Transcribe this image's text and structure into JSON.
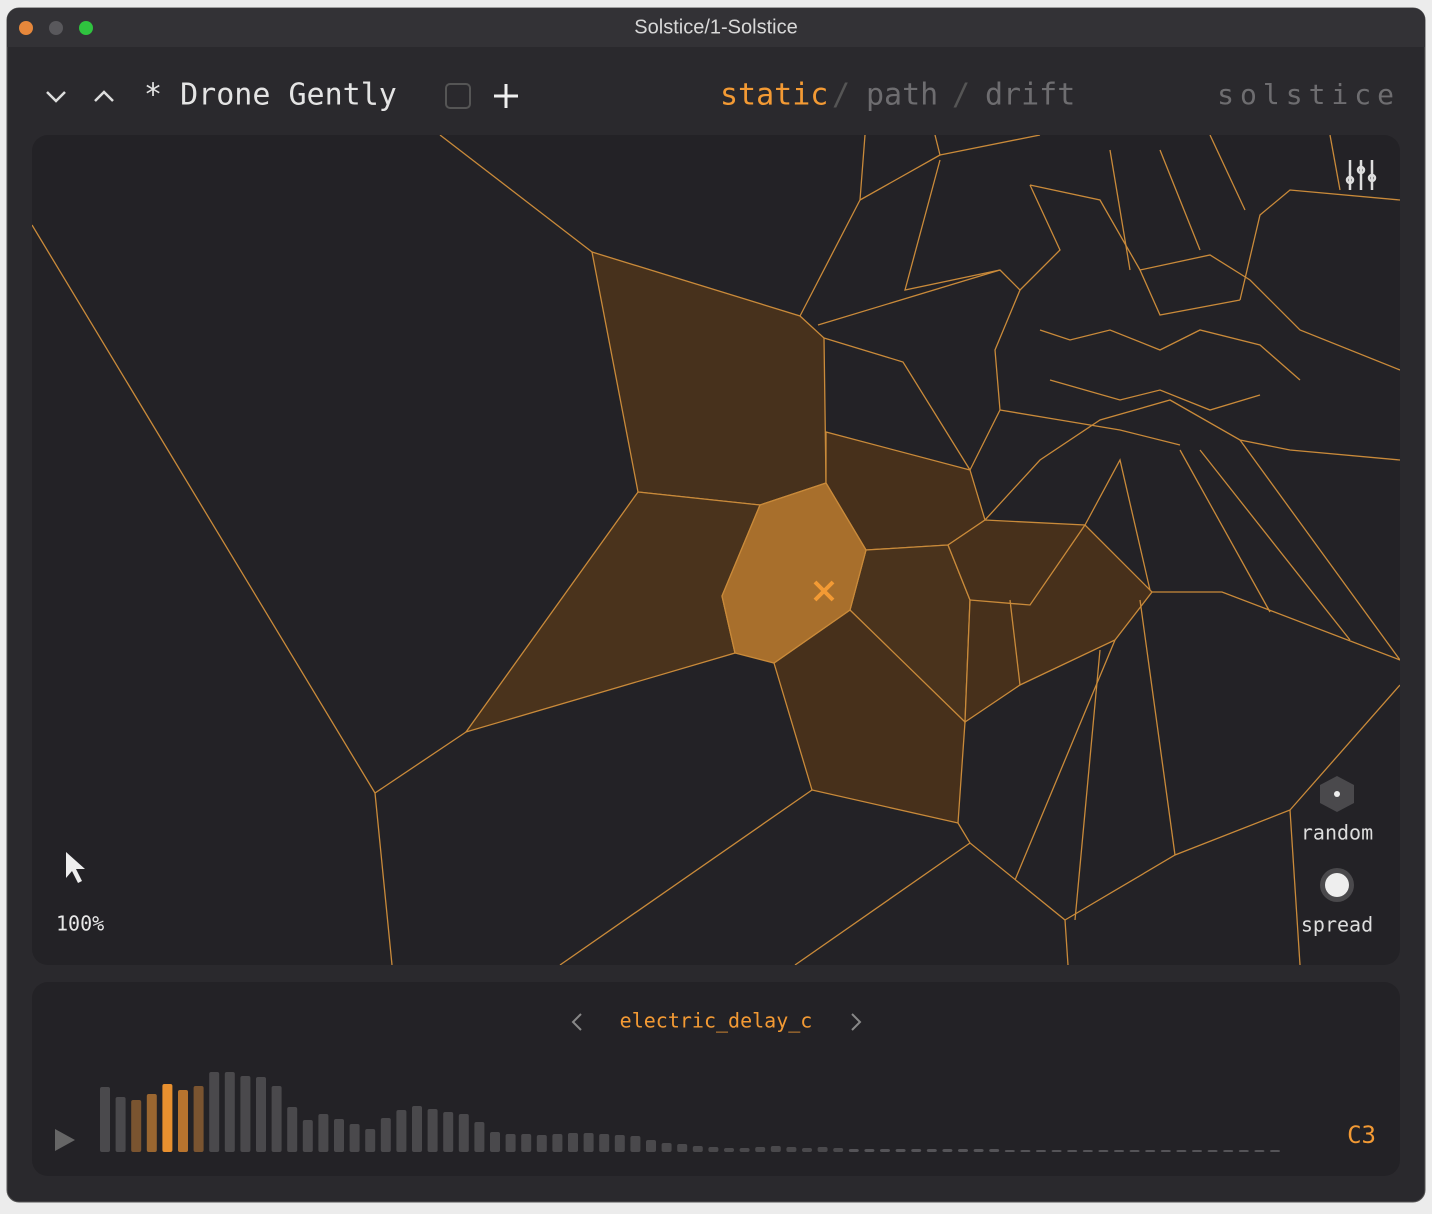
{
  "window": {
    "title": "Solstice/1-Solstice"
  },
  "toolbar": {
    "preset": "* Drone Gently",
    "modes": [
      "static",
      "/",
      "path",
      "/",
      "drift"
    ],
    "logo": "solstice"
  },
  "canvas": {
    "zoom": "100%",
    "controls": [
      "random",
      "spread"
    ]
  },
  "sample": {
    "name": "electric_delay_c",
    "note": "C3",
    "waveform": [
      65,
      55,
      52,
      58,
      68,
      62,
      66,
      80,
      80,
      76,
      75,
      66,
      45,
      32,
      38,
      33,
      28,
      23,
      34,
      42,
      46,
      43,
      40,
      38,
      30,
      20,
      18,
      18,
      17,
      18,
      19,
      19,
      18,
      17,
      16,
      12,
      9,
      8,
      6,
      5,
      4,
      4,
      5,
      6,
      5,
      4,
      5,
      4,
      3,
      3,
      3,
      3,
      3,
      3,
      3,
      3,
      3,
      3,
      2,
      2,
      2,
      2,
      2,
      2,
      2,
      2,
      2,
      2,
      2,
      2,
      2,
      2,
      2,
      2,
      2,
      2
    ]
  }
}
